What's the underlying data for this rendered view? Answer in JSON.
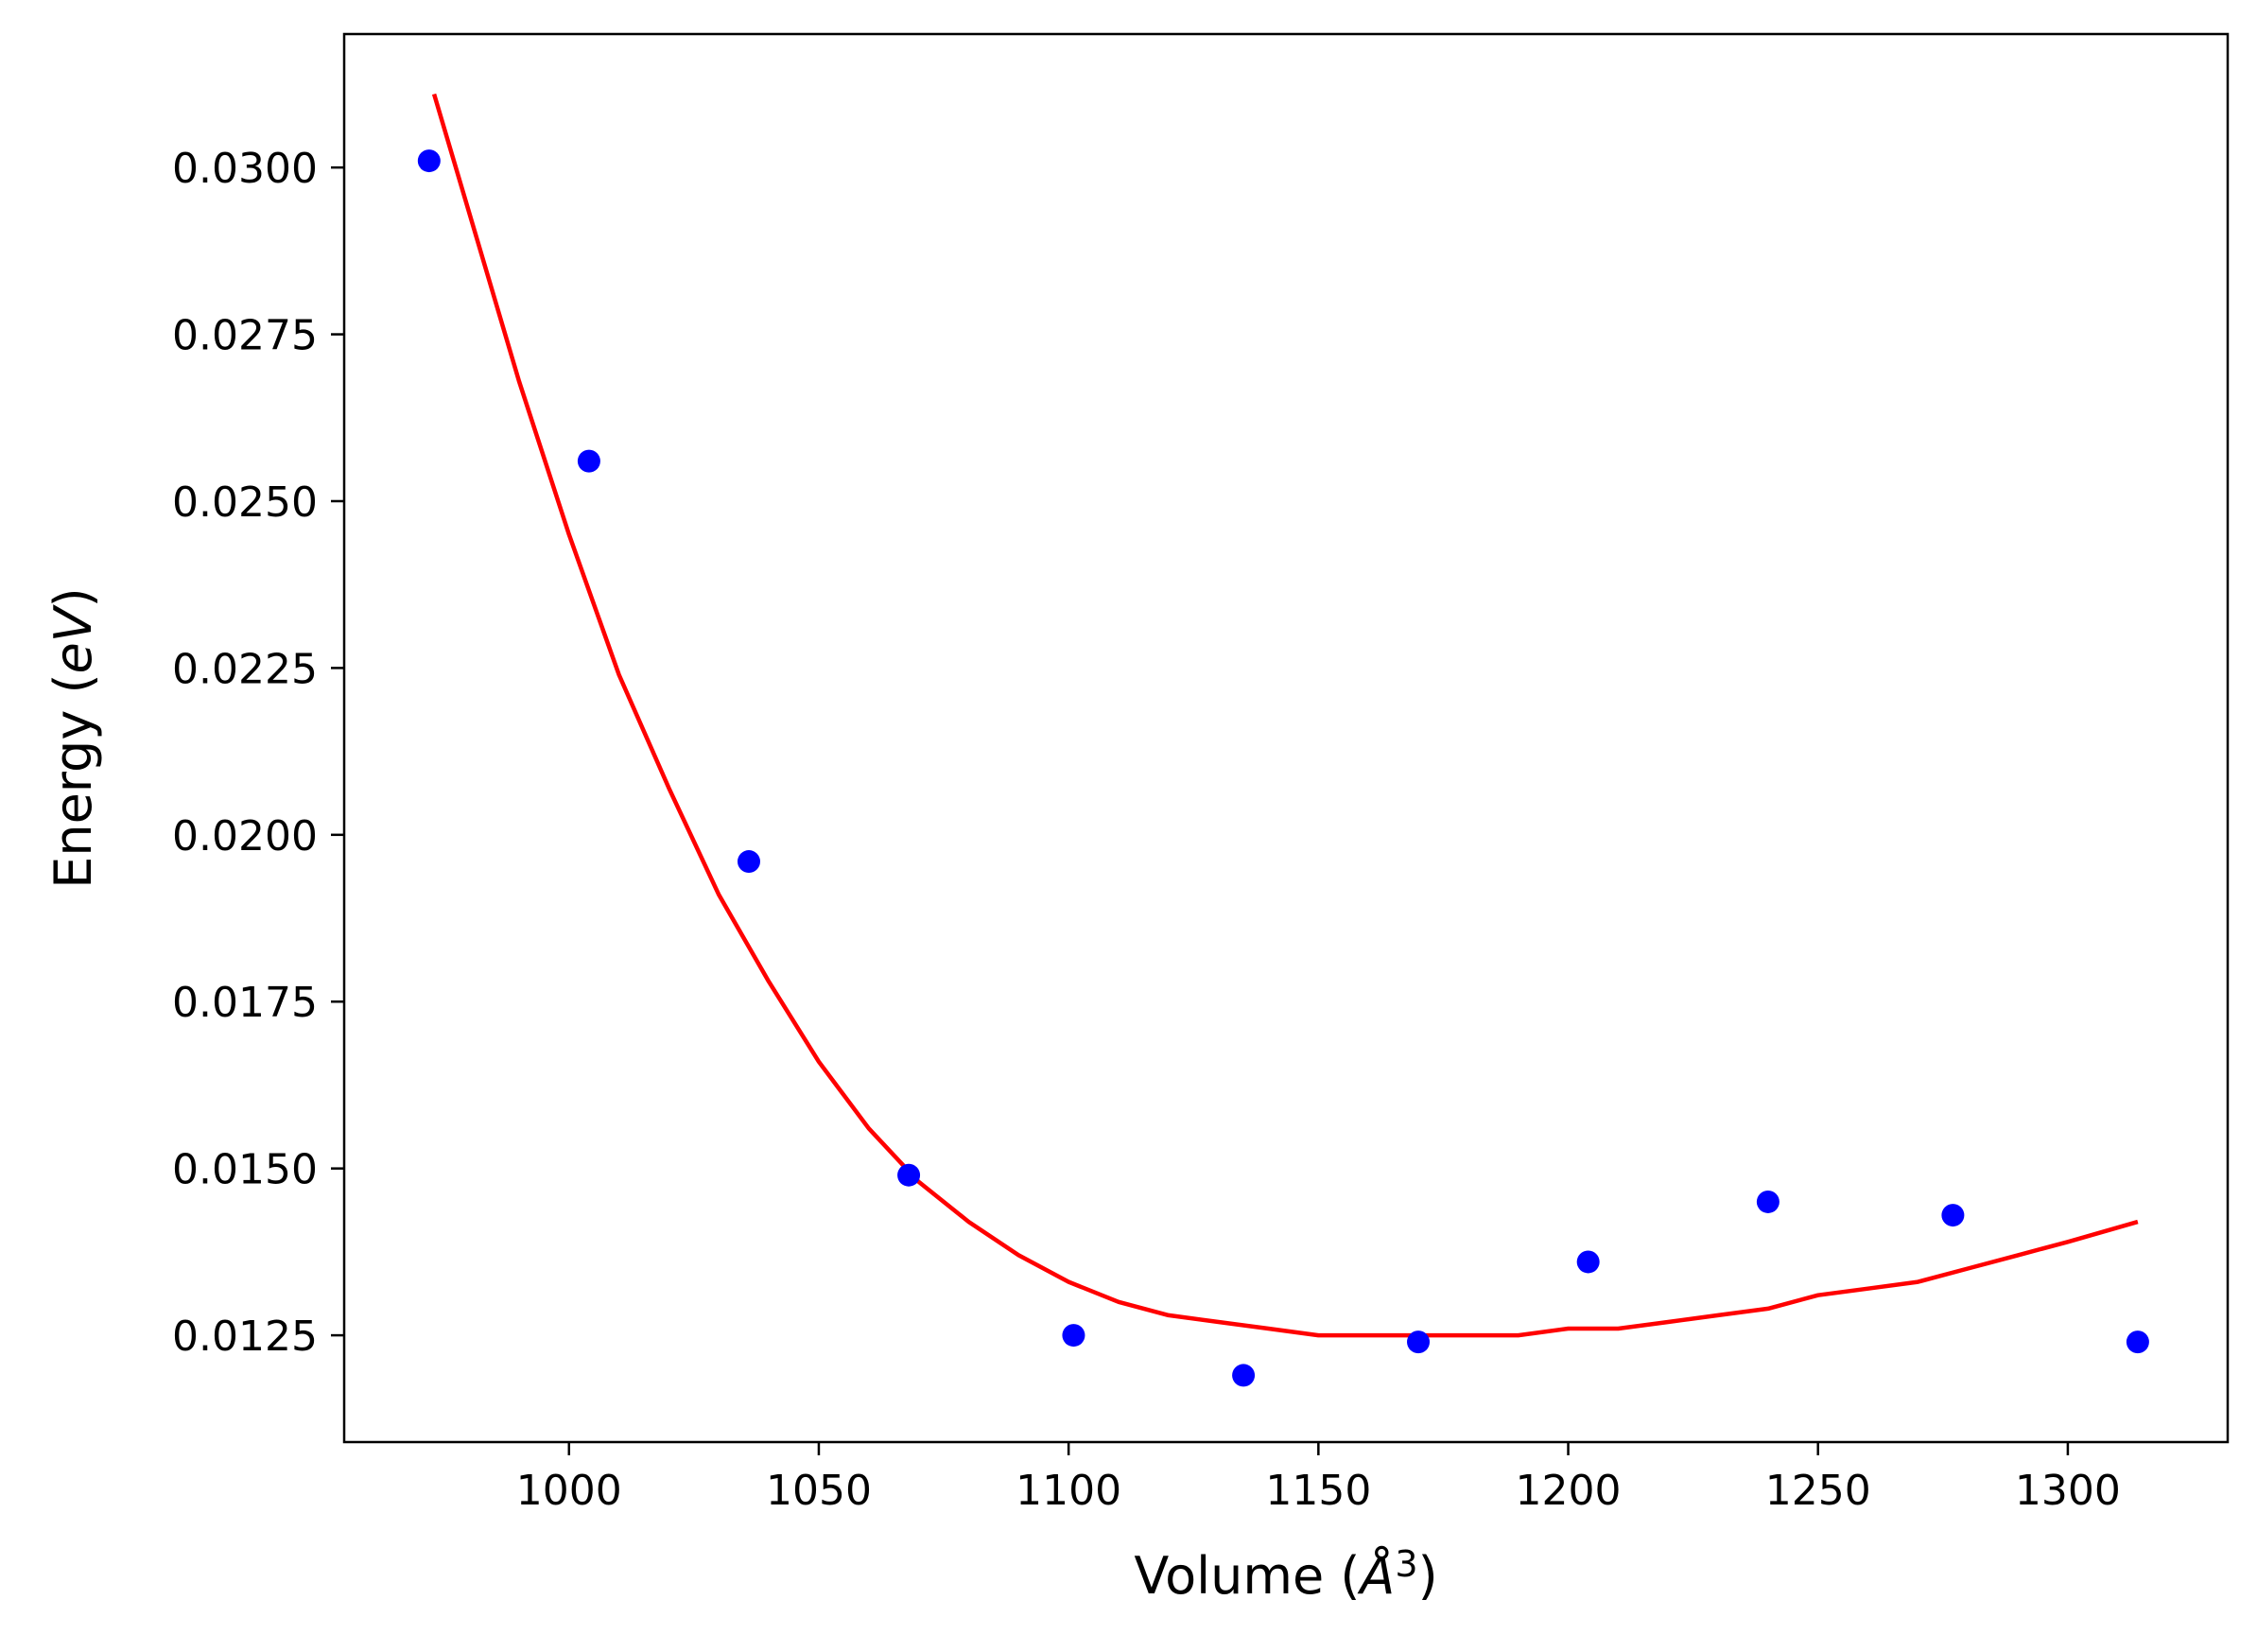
{
  "chart_data": {
    "type": "scatter",
    "title": "",
    "xlabel": {
      "prefix": "Volume (",
      "symbol": "Å",
      "power": "3",
      "suffix": ")"
    },
    "ylabel": {
      "prefix": "Energy (",
      "unit": "eV",
      "suffix": ")"
    },
    "xlim": [
      955,
      1332
    ],
    "ylim": [
      0.0109,
      0.032
    ],
    "xticks": [
      1000,
      1050,
      1100,
      1150,
      1200,
      1250,
      1300
    ],
    "xtick_labels": [
      "1000",
      "1050",
      "1100",
      "1150",
      "1200",
      "1250",
      "1300"
    ],
    "yticks": [
      0.0125,
      0.015,
      0.0175,
      0.02,
      0.0225,
      0.025,
      0.0275,
      0.03
    ],
    "ytick_labels": [
      "0.0125",
      "0.0150",
      "0.0175",
      "0.0200",
      "0.0225",
      "0.0250",
      "0.0275",
      "0.0300"
    ],
    "grid": false,
    "legend": false,
    "colors": {
      "points": "#0000ff",
      "fit": "#ff0000"
    },
    "series": [
      {
        "kind": "points",
        "x": [
          972,
          1004,
          1036,
          1068,
          1101,
          1135,
          1170,
          1204,
          1240,
          1277,
          1314
        ],
        "y": [
          0.0301,
          0.0256,
          0.0196,
          0.0149,
          0.0125,
          0.0119,
          0.0124,
          0.0136,
          0.0145,
          0.0143,
          0.0124
        ]
      },
      {
        "kind": "fit-curve",
        "x": [
          973,
          990,
          1000,
          1010,
          1020,
          1030,
          1040,
          1050,
          1060,
          1070,
          1080,
          1090,
          1100,
          1110,
          1120,
          1130,
          1140,
          1150,
          1160,
          1170,
          1180,
          1190,
          1200,
          1210,
          1220,
          1230,
          1240,
          1250,
          1260,
          1270,
          1280,
          1290,
          1300,
          1314
        ],
        "y": [
          0.0311,
          0.0268,
          0.0245,
          0.0224,
          0.0207,
          0.0191,
          0.0178,
          0.0166,
          0.0156,
          0.0148,
          0.0142,
          0.0137,
          0.0133,
          0.013,
          0.0128,
          0.0127,
          0.0126,
          0.0125,
          0.0125,
          0.0125,
          0.0125,
          0.0125,
          0.0126,
          0.0126,
          0.0127,
          0.0128,
          0.0129,
          0.0131,
          0.0132,
          0.0133,
          0.0135,
          0.0137,
          0.0139,
          0.0142
        ]
      }
    ]
  }
}
